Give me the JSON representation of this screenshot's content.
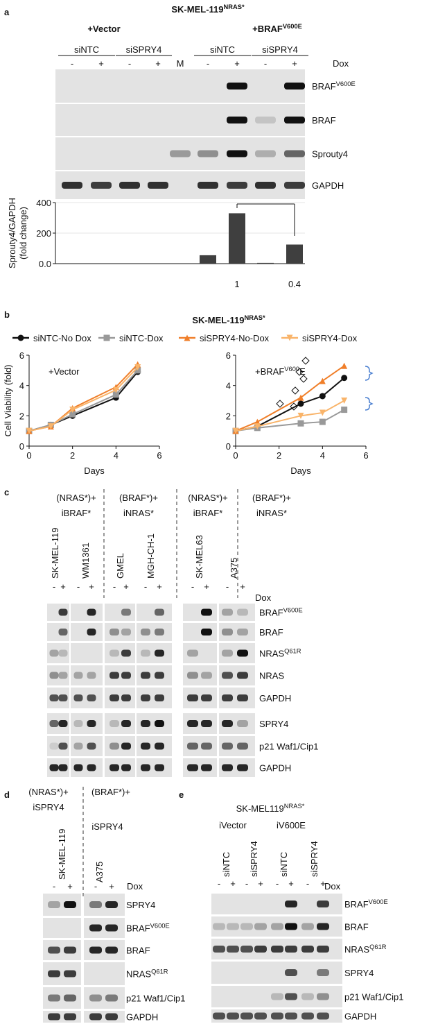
{
  "figure": {
    "a": {
      "label": "a",
      "title": {
        "text": "SK-MEL-119",
        "sup": "NRAS*"
      },
      "groups": [
        {
          "text": "+Vector"
        },
        {
          "text": "+BRAF",
          "sup": "V600E"
        }
      ],
      "conditions": [
        "siNTC",
        "siSPRY4",
        "siNTC",
        "siSPRY4"
      ],
      "lanes": [
        "-",
        "+",
        "-",
        "+",
        "M",
        "-",
        "+",
        "-",
        "+"
      ],
      "dox": "Dox",
      "blots": [
        {
          "text": "BRAF",
          "sup": "V600E"
        },
        {
          "text": "BRAF"
        },
        {
          "text": "Sprouty4"
        },
        {
          "text": "GAPDH"
        }
      ]
    },
    "b": {
      "label": "b"
    },
    "c": {
      "label": "c",
      "groups": [
        {
          "lines": [
            "(NRAS*)+",
            "iBRAF*"
          ]
        },
        {
          "lines": [
            "(BRAF*)+",
            "iNRAS*"
          ]
        },
        {
          "lines": [
            "(NRAS*)+",
            "iBRAF*"
          ]
        },
        {
          "lines": [
            "(BRAF*)+",
            "iNRAS*"
          ]
        }
      ],
      "cell_lines": [
        {
          "name": "SK-MEL-119",
          "color": "#e3262b"
        },
        {
          "name": "WM1361",
          "color": "#e3262b"
        },
        {
          "name": "GMEL",
          "color": "#e3262b"
        },
        {
          "name": "MGH-CH-1",
          "color": "#e3262b"
        },
        {
          "name": "SK-MEL63",
          "color": "#3aa935"
        },
        {
          "name": "A375",
          "color": "#3aa935"
        }
      ],
      "lanes": [
        "-",
        "+",
        "-",
        "+",
        "-",
        "+",
        "-",
        "+",
        "-",
        "+",
        "-",
        "+"
      ],
      "dox": "Dox",
      "blots": [
        {
          "text": "BRAF",
          "sup": "V600E"
        },
        {
          "text": "BRAF"
        },
        {
          "text": "NRAS",
          "sup": "Q61R"
        },
        {
          "text": "NRAS"
        },
        {
          "text": "GAPDH"
        },
        {
          "text": "SPRY4"
        },
        {
          "text": "p21 Waf1/Cip1"
        },
        {
          "text": "GAPDH"
        }
      ]
    },
    "d": {
      "label": "d",
      "groups": [
        {
          "lines": [
            "(NRAS*)+",
            "iSPRY4"
          ]
        },
        {
          "lines": [
            "(BRAF*)+",
            "iSPRY4"
          ]
        }
      ],
      "cell_lines": [
        {
          "name": "SK-MEL-119",
          "color": "#e3262b"
        },
        {
          "name": "A375",
          "color": "#3aa935"
        }
      ],
      "lanes": [
        "-",
        "+",
        "-",
        "+"
      ],
      "dox": "Dox",
      "blots": [
        {
          "text": "SPRY4"
        },
        {
          "text": "BRAF",
          "sup": "V600E"
        },
        {
          "text": "BRAF"
        },
        {
          "text": "NRAS",
          "sup": "Q61R"
        },
        {
          "text": "p21 Waf1/Cip1"
        },
        {
          "text": "GAPDH"
        }
      ]
    },
    "e": {
      "label": "e",
      "title": {
        "text": "SK-MEL119",
        "sup": "NRAS*"
      },
      "title_color": "#e3262b",
      "groups": [
        "iVector",
        "iV600E"
      ],
      "conditions": [
        "siNTC",
        "siSPRY4",
        "siNTC",
        "siSPRY4"
      ],
      "lanes": [
        "-",
        "+",
        "-",
        "+",
        "-",
        "+",
        "-",
        "+"
      ],
      "dox": "Dox",
      "blots": [
        {
          "text": "BRAF",
          "sup": "V600E"
        },
        {
          "text": "BRAF"
        },
        {
          "text": "NRAS",
          "sup": "Q61R"
        },
        {
          "text": "SPRY4"
        },
        {
          "text": "p21 Waf1/Cip1"
        },
        {
          "text": "GAPDH"
        }
      ]
    }
  },
  "chart_data": [
    {
      "type": "bar",
      "y_label": [
        "Sprouty4/GAPDH",
        "(fold change)"
      ],
      "categories": [
        null,
        null,
        null,
        null,
        null,
        null,
        null,
        null,
        null
      ],
      "values": [
        0,
        0,
        0,
        0,
        null,
        55,
        330,
        5,
        125
      ],
      "color": "#3f3f3f",
      "ylim": [
        0,
        400
      ],
      "yticks": [
        {
          "value": 0,
          "label": "0.0"
        },
        200,
        400
      ],
      "grid": true,
      "annotations": [
        "1",
        "0.4"
      ]
    },
    {
      "type": "line",
      "title": {
        "text": "SK-MEL-119",
        "sup": "NRAS*"
      },
      "y_label": "Cell Viability (fold)",
      "x_label": "Days",
      "xlim": [
        0,
        6
      ],
      "ylim": [
        0,
        6
      ],
      "xticks": [
        0,
        2,
        4,
        6
      ],
      "yticks": [
        0,
        2,
        4,
        6
      ],
      "series": [
        {
          "name": "siNTC-No Dox",
          "color": "#111111",
          "marker": "circle"
        },
        {
          "name": "siNTC-Dox",
          "color": "#999999",
          "marker": "square"
        },
        {
          "name": "siSPRY4-No-Dox",
          "color": "#f07f2a",
          "marker": "triangle-up"
        },
        {
          "name": "siSPRY4-Dox",
          "color": "#f9b46a",
          "marker": "triangle-down"
        }
      ],
      "panels": [
        {
          "annotation": {
            "text": "+Vector"
          },
          "x": [
            0,
            1,
            2,
            4,
            5
          ],
          "values": [
            [
              1,
              1.4,
              2.0,
              3.2,
              4.9
            ],
            [
              1,
              1.4,
              2.1,
              3.4,
              5.0
            ],
            [
              1,
              1.3,
              2.5,
              3.9,
              5.4
            ],
            [
              1,
              1.3,
              2.4,
              3.7,
              5.2
            ]
          ]
        },
        {
          "annotation": {
            "text": "+BRAF",
            "sup": "V600",
            "tail": "E"
          },
          "x": [
            0,
            1,
            3,
            4,
            5
          ],
          "values": [
            [
              1,
              1.3,
              2.8,
              3.3,
              4.5
            ],
            [
              1,
              1.2,
              1.5,
              1.6,
              2.4
            ],
            [
              1,
              1.6,
              3.2,
              4.3,
              5.3
            ],
            [
              1,
              1.3,
              2.0,
              2.2,
              3.0
            ]
          ]
        }
      ]
    }
  ]
}
